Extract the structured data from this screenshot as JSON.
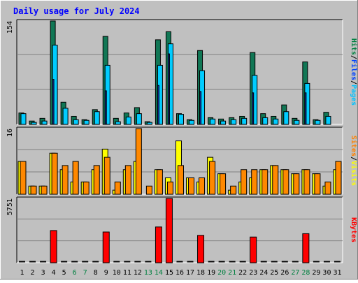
{
  "chart_data": [
    {
      "type": "bar",
      "panel": "hits-files-pages",
      "title": "Daily usage for July 2024",
      "y_max_label": "154",
      "ylim": [
        0,
        154
      ],
      "grid": true,
      "right_legend": [
        {
          "text": "Pages",
          "color": "#00c0ff"
        },
        {
          "text": "Files",
          "color": "#0040ff"
        },
        {
          "text": "Hits",
          "color": "#008040"
        }
      ],
      "categories": [
        "1",
        "2",
        "3",
        "4",
        "5",
        "6",
        "7",
        "8",
        "9",
        "10",
        "11",
        "12",
        "13",
        "14",
        "15",
        "16",
        "17",
        "18",
        "19",
        "20",
        "21",
        "22",
        "23",
        "24",
        "25",
        "26",
        "27",
        "28",
        "29",
        "30",
        "31"
      ],
      "weekend_days": [
        6,
        7,
        13,
        14,
        20,
        21,
        27,
        28
      ],
      "series": [
        {
          "name": "Hits",
          "color": "#117755",
          "values": [
            17,
            5,
            9,
            154,
            33,
            12,
            7,
            22,
            131,
            9,
            17,
            25,
            4,
            126,
            138,
            16,
            7,
            110,
            10,
            8,
            10,
            12,
            107,
            16,
            12,
            29,
            9,
            93,
            7,
            18,
            0
          ]
        },
        {
          "name": "Files",
          "color": "#1133aa",
          "values": [
            0,
            0,
            0,
            67,
            0,
            0,
            0,
            0,
            50,
            0,
            0,
            0,
            0,
            58,
            105,
            0,
            0,
            49,
            0,
            0,
            0,
            0,
            47,
            0,
            0,
            0,
            0,
            47,
            0,
            0,
            0
          ]
        },
        {
          "name": "Pages",
          "color": "#00ccff",
          "values": [
            16,
            3,
            5,
            118,
            24,
            7,
            6,
            19,
            88,
            4,
            11,
            16,
            3,
            88,
            120,
            15,
            6,
            80,
            8,
            5,
            7,
            9,
            73,
            10,
            8,
            19,
            6,
            61,
            6,
            12,
            0
          ]
        }
      ]
    },
    {
      "type": "bar",
      "panel": "visits-sites",
      "y_max_label": "16",
      "ylim": [
        0,
        16
      ],
      "grid": true,
      "right_legend": [
        {
          "text": "Visits",
          "color": "#ffff00"
        },
        {
          "text": "Sites",
          "color": "#ff8000"
        }
      ],
      "categories": [
        "1",
        "2",
        "3",
        "4",
        "5",
        "6",
        "7",
        "8",
        "9",
        "10",
        "11",
        "12",
        "13",
        "14",
        "15",
        "16",
        "17",
        "18",
        "19",
        "20",
        "21",
        "22",
        "23",
        "24",
        "25",
        "26",
        "27",
        "28",
        "29",
        "30",
        "31"
      ],
      "series": [
        {
          "name": "Visits",
          "color": "#ffff00",
          "values": [
            8,
            2,
            2,
            10,
            6,
            3,
            3,
            6,
            11,
            1,
            6,
            8,
            0,
            6,
            4,
            13,
            4,
            3,
            9,
            5,
            1,
            3,
            4,
            6,
            7,
            6,
            5,
            6,
            5,
            2,
            6
          ]
        },
        {
          "name": "Sites",
          "color": "#ff8800",
          "values": [
            8,
            2,
            2,
            10,
            7,
            8,
            3,
            7,
            9,
            3,
            7,
            16,
            2,
            6,
            3,
            7,
            4,
            4,
            8,
            5,
            2,
            6,
            6,
            6,
            7,
            6,
            5,
            6,
            5,
            3,
            8
          ]
        }
      ]
    },
    {
      "type": "bar",
      "panel": "kbytes",
      "y_max_label": "5751",
      "ylim": [
        0,
        5751
      ],
      "grid": true,
      "right_legend": [
        {
          "text": "KBytes",
          "color": "#ff0000"
        }
      ],
      "categories": [
        "1",
        "2",
        "3",
        "4",
        "5",
        "6",
        "7",
        "8",
        "9",
        "10",
        "11",
        "12",
        "13",
        "14",
        "15",
        "16",
        "17",
        "18",
        "19",
        "20",
        "21",
        "22",
        "23",
        "24",
        "25",
        "26",
        "27",
        "28",
        "29",
        "30",
        "31"
      ],
      "series": [
        {
          "name": "KBytes",
          "color": "#ff0000",
          "values": [
            0,
            0,
            0,
            2880,
            0,
            0,
            0,
            0,
            2750,
            0,
            0,
            0,
            0,
            3200,
            5751,
            0,
            0,
            2450,
            0,
            0,
            0,
            0,
            2300,
            0,
            0,
            0,
            0,
            2600,
            0,
            0,
            0
          ]
        }
      ]
    }
  ]
}
